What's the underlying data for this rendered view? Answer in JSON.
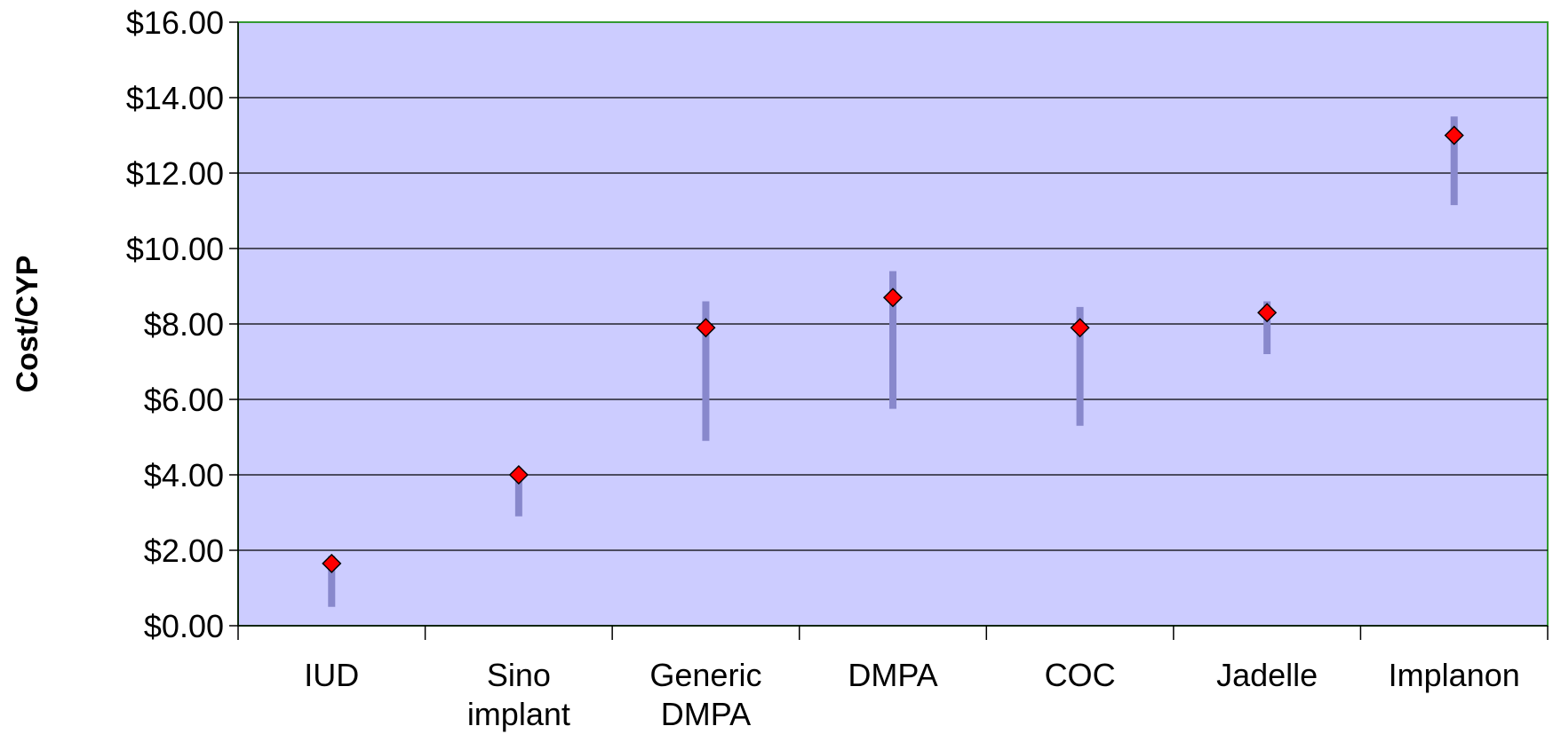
{
  "chart_data": {
    "type": "scatter",
    "title": "",
    "xlabel": "",
    "ylabel": "Cost/CYP",
    "ylim": [
      0,
      16
    ],
    "yticks": [
      "$0.00",
      "$2.00",
      "$4.00",
      "$6.00",
      "$8.00",
      "$10.00",
      "$12.00",
      "$14.00",
      "$16.00"
    ],
    "grid": true,
    "legend": "none",
    "categories": [
      [
        "IUD"
      ],
      [
        "Sino",
        "implant"
      ],
      [
        "Generic",
        "DMPA"
      ],
      [
        "DMPA"
      ],
      [
        "COC"
      ],
      [
        "Jadelle"
      ],
      [
        "Implanon"
      ]
    ],
    "values": [
      1.65,
      4.0,
      7.9,
      8.7,
      7.9,
      8.3,
      13.0
    ],
    "low": [
      0.5,
      2.9,
      4.9,
      5.75,
      5.3,
      7.2,
      11.15
    ],
    "high": [
      1.85,
      4.15,
      8.6,
      9.4,
      8.45,
      8.6,
      13.5
    ],
    "colors": {
      "plot_bg": "#ccccff",
      "plot_border": "#339933",
      "range_bar": "#8888cc",
      "marker": "#ff0000"
    }
  }
}
